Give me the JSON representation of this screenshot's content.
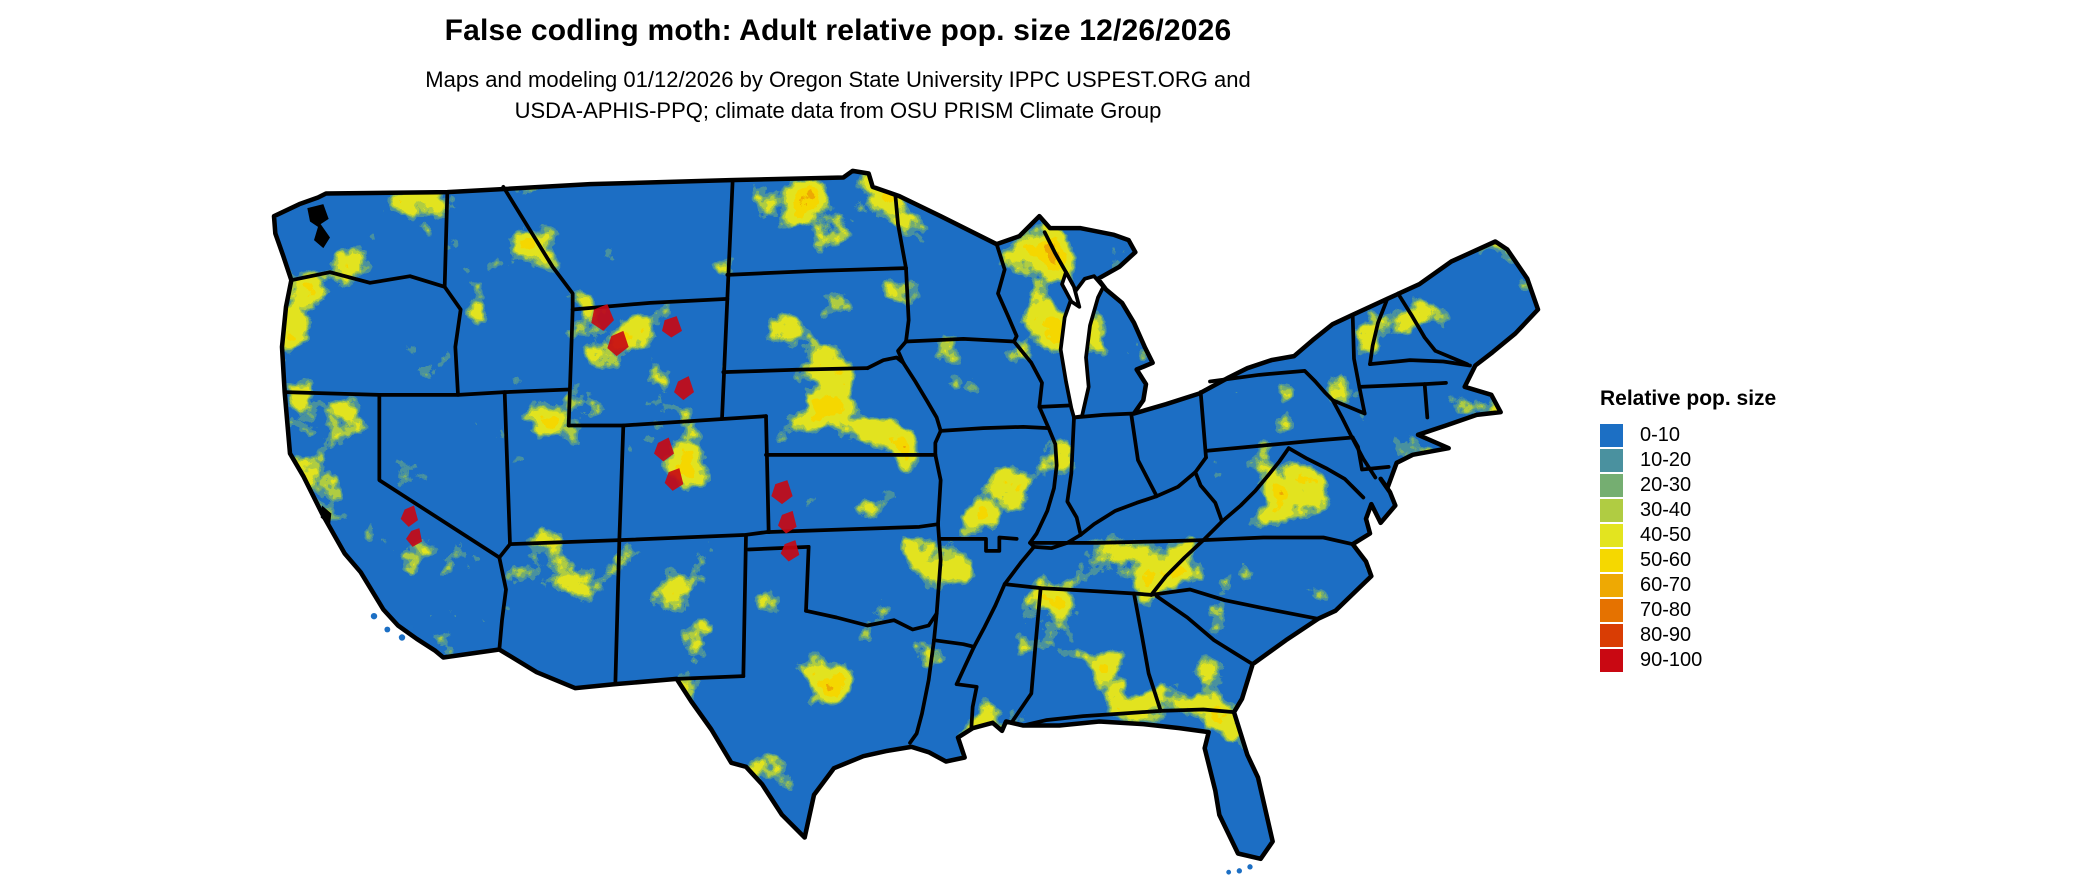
{
  "header": {
    "title": "False codling moth: Adult relative pop. size 12/26/2026",
    "subtitle_line1": "Maps and modeling 01/12/2026 by Oregon State University IPPC USPEST.ORG and",
    "subtitle_line2": "USDA-APHIS-PPQ; climate data from OSU PRISM Climate Group"
  },
  "legend": {
    "title": "Relative pop. size",
    "items": [
      {
        "label": "0-10",
        "color": "#1c6fc4"
      },
      {
        "label": "10-20",
        "color": "#4a919f"
      },
      {
        "label": "20-30",
        "color": "#75ae71"
      },
      {
        "label": "30-40",
        "color": "#b0cc42"
      },
      {
        "label": "40-50",
        "color": "#e3e41f"
      },
      {
        "label": "50-60",
        "color": "#f5d800"
      },
      {
        "label": "60-70",
        "color": "#eea903"
      },
      {
        "label": "70-80",
        "color": "#e57200"
      },
      {
        "label": "80-90",
        "color": "#d93d04"
      },
      {
        "label": "90-100",
        "color": "#c90812"
      }
    ]
  },
  "map": {
    "area_label": "Contiguous United States",
    "base_color": "#1c6fc4",
    "border_color": "#000000",
    "water_color": "#ffffff",
    "background_color": "#ffffff"
  }
}
